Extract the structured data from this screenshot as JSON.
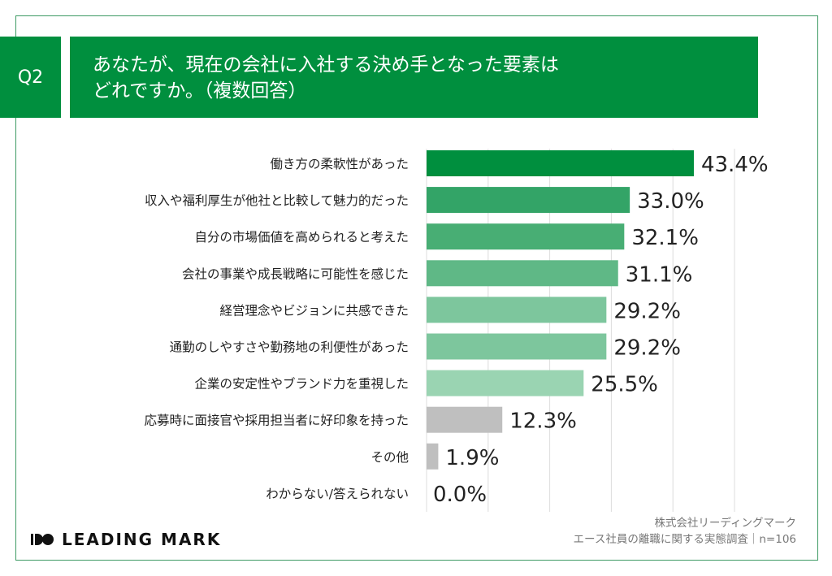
{
  "header": {
    "question_number": "Q2",
    "title_line1": "あなたが、現在の会社に入社する決め手となった要素は",
    "title_line2": "どれですか。（複数回答）"
  },
  "chart_data": {
    "type": "bar",
    "orientation": "horizontal",
    "categories": [
      "働き方の柔軟性があった",
      "収入や福利厚生が他社と比較して魅力的だった",
      "自分の市場価値を高められると考えた",
      "会社の事業や成長戦略に可能性を感じた",
      "経営理念やビジョンに共感できた",
      "通勤のしやすさや勤務地の利便性があった",
      "企業の安定性やブランド力を重視した",
      "応募時に面接官や採用担当者に好印象を持った",
      "その他",
      "わからない/答えられない"
    ],
    "values": [
      43.4,
      33.0,
      32.1,
      31.1,
      29.2,
      29.2,
      25.5,
      12.3,
      1.9,
      0.0
    ],
    "value_labels": [
      "43.4%",
      "33.0%",
      "32.1%",
      "31.1%",
      "29.2%",
      "29.2%",
      "25.5%",
      "12.3%",
      "1.9%",
      "0.0%"
    ],
    "colors": [
      "#008f3e",
      "#33a467",
      "#48ae74",
      "#5fb886",
      "#7dc69d",
      "#7dc69d",
      "#9ad4b2",
      "#bfbfbf",
      "#bfbfbf",
      "#bfbfbf"
    ],
    "xlim": [
      0,
      50
    ],
    "grid": true,
    "unit": "%"
  },
  "footer": {
    "logo": "LEADING MARK",
    "source_line1": "株式会社リーディングマーク",
    "source_line2": "エース社員の離職に関する実態調査｜n=106"
  },
  "colors": {
    "brand": "#008f3e",
    "frame": "#3d9a63"
  }
}
